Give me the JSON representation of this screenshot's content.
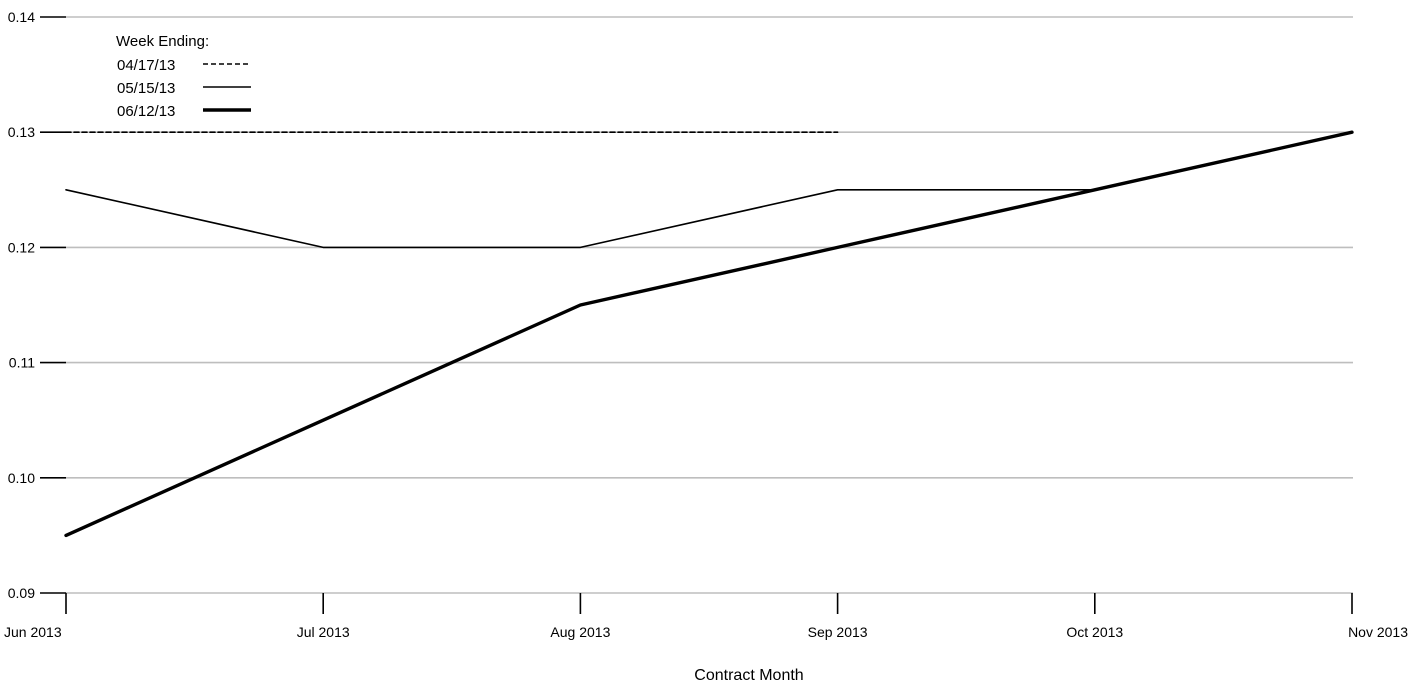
{
  "chart_data": {
    "type": "line",
    "title": "",
    "xlabel": "Contract Month",
    "ylabel": "",
    "categories": [
      "Jun 2013",
      "Jul 2013",
      "Aug 2013",
      "Sep 2013",
      "Oct 2013",
      "Nov 2013"
    ],
    "y_ticks": [
      "0.09",
      "0.10",
      "0.11",
      "0.12",
      "0.13",
      "0.14"
    ],
    "ylim": [
      0.09,
      0.14
    ],
    "grid": true,
    "legend": {
      "title": "Week Ending:",
      "position": "top-left"
    },
    "series": [
      {
        "name": "04/17/13",
        "style": "dashed",
        "values": [
          0.13,
          0.13,
          0.13,
          0.13,
          null,
          null
        ]
      },
      {
        "name": "05/15/13",
        "style": "thin",
        "values": [
          0.125,
          0.12,
          0.12,
          0.125,
          0.125,
          0.13
        ]
      },
      {
        "name": "06/12/13",
        "style": "thick",
        "values": [
          0.095,
          0.105,
          0.115,
          0.12,
          0.125,
          0.13
        ]
      }
    ],
    "colors": {
      "line": "#000000",
      "grid": "#bebebe"
    }
  }
}
